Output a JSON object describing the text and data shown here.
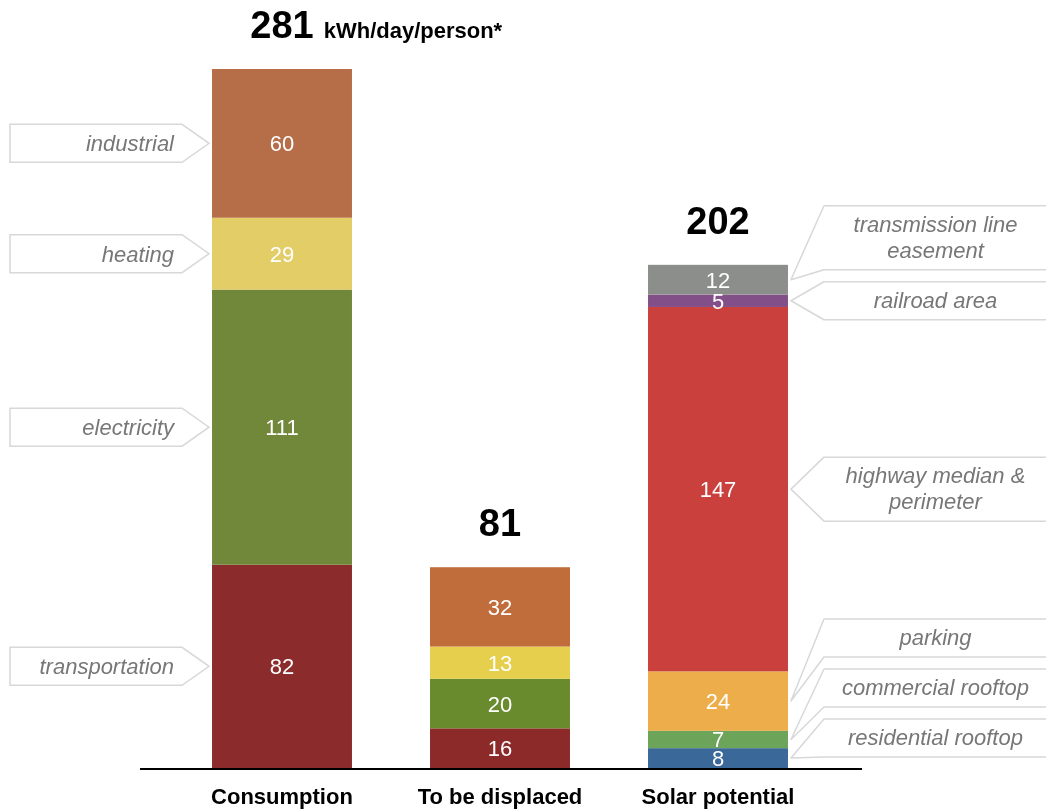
{
  "chart_data": {
    "type": "bar",
    "stacked": true,
    "categories": [
      "Consumption",
      "To be displaced",
      "Solar potential"
    ],
    "series": [
      {
        "name": "transportation",
        "colors": [
          "#8c2b2b",
          "#8b2a28",
          null
        ],
        "values": [
          82,
          16,
          null
        ]
      },
      {
        "name": "electricity",
        "colors": [
          "#71873a",
          "#6a8a2e",
          null
        ],
        "values": [
          111,
          20,
          null
        ]
      },
      {
        "name": "heating",
        "colors": [
          "#e3cd67",
          "#e6cf4d",
          null
        ],
        "values": [
          29,
          13,
          null
        ]
      },
      {
        "name": "industrial",
        "colors": [
          "#b56e48",
          "#c06c3b",
          null
        ],
        "values": [
          60,
          32,
          null
        ]
      },
      {
        "name": "residential rooftop",
        "color": "#3a6898",
        "values": [
          null,
          null,
          8
        ]
      },
      {
        "name": "commercial rooftop",
        "color": "#6ca45a",
        "values": [
          null,
          null,
          7
        ]
      },
      {
        "name": "parking",
        "color": "#ecad4a",
        "values": [
          null,
          null,
          24
        ]
      },
      {
        "name": "highway median & perimeter",
        "color": "#c9403d",
        "values": [
          null,
          null,
          147
        ]
      },
      {
        "name": "railroad area",
        "color": "#834f89",
        "values": [
          null,
          null,
          5
        ]
      },
      {
        "name": "transmission line easement",
        "color": "#8c8e8c",
        "values": [
          null,
          null,
          12
        ]
      }
    ],
    "data_labels": true,
    "totals": [
      "281",
      "81",
      "202"
    ],
    "annotations": [
      "kWh/day/person*"
    ]
  }
}
